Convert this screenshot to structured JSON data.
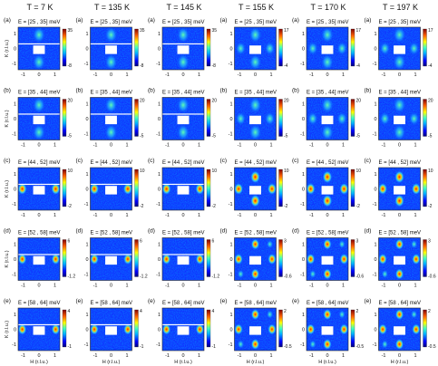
{
  "figure": {
    "columns": [
      {
        "title": "T = 7 K"
      },
      {
        "title": "T = 135 K"
      },
      {
        "title": "T = 145 K"
      },
      {
        "title": "T = 155 K"
      },
      {
        "title": "T = 170 K"
      },
      {
        "title": "T = 197 K"
      }
    ],
    "rows": [
      {
        "letter": "(a)",
        "energy": "E = [25 , 35] meV",
        "colorbar": [
          [
            "35",
            "-8"
          ],
          [
            "35",
            "-8"
          ],
          [
            "35",
            "-8"
          ],
          [
            "17",
            "-4"
          ],
          [
            "17",
            "-4"
          ],
          [
            "17",
            "-4"
          ]
        ]
      },
      {
        "letter": "(b)",
        "energy": "E = [35 , 44] meV",
        "colorbar": [
          [
            "20",
            "-5"
          ],
          [
            "20",
            "-5"
          ],
          [
            "20",
            "-5"
          ],
          [
            "20",
            "-5"
          ],
          [
            "20",
            "-5"
          ],
          [
            "20",
            "-5"
          ]
        ]
      },
      {
        "letter": "(c)",
        "energy": "E = [44 , 52] meV",
        "colorbar": [
          [
            "10",
            "-2"
          ],
          [
            "10",
            "-2"
          ],
          [
            "10",
            "-2"
          ],
          [
            "10",
            "-2"
          ],
          [
            "10",
            "-2"
          ],
          [
            "10",
            "-2"
          ]
        ]
      },
      {
        "letter": "(d)",
        "energy": "E = [52 , 58] meV",
        "colorbar": [
          [
            "6",
            "-1.2"
          ],
          [
            "6",
            "-1.2"
          ],
          [
            "6",
            "-1.2"
          ],
          [
            "3",
            "-0.6"
          ],
          [
            "3",
            "-0.6"
          ],
          [
            "3",
            "-0.6"
          ]
        ]
      },
      {
        "letter": "(e)",
        "energy": "E = [58 , 64] meV",
        "colorbar": [
          [
            "4",
            "-1"
          ],
          [
            "4",
            "-1"
          ],
          [
            "4",
            "-1"
          ],
          [
            "2",
            "-0.5"
          ],
          [
            "2",
            "-0.5"
          ],
          [
            "2",
            "-0.5"
          ]
        ]
      }
    ],
    "ylabel": "K (r.l.u.)",
    "xlabel": "H (r.l.u.)",
    "yticks": [
      "1",
      "0",
      "-1"
    ],
    "xticks": [
      "-1",
      "0",
      "1"
    ],
    "colormap": [
      "#00007f",
      "#0000ff",
      "#00a0ff",
      "#40ffc0",
      "#ffff00",
      "#ff8000",
      "#ff0000",
      "#7f0000"
    ]
  }
}
